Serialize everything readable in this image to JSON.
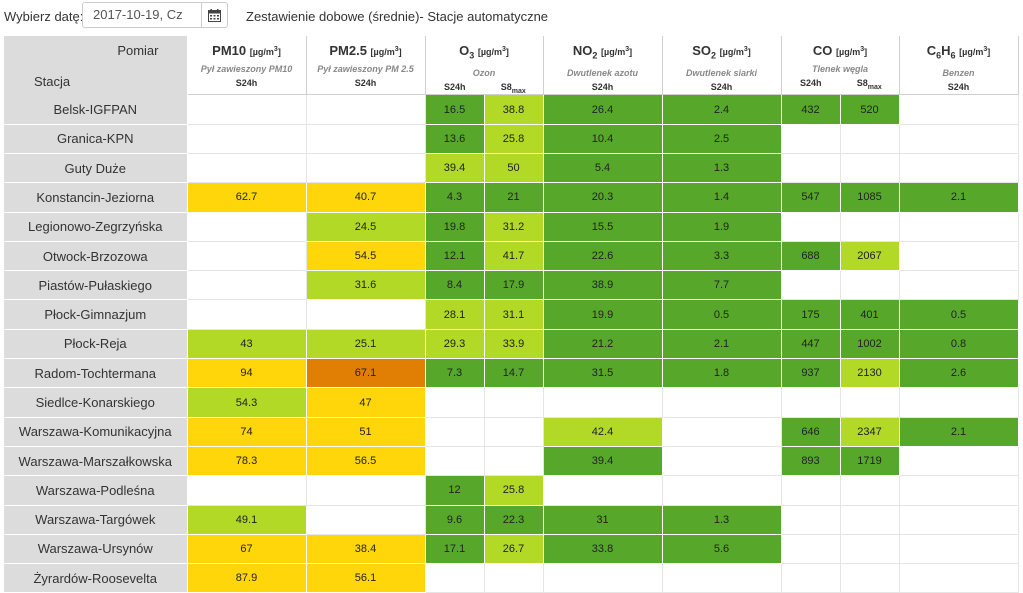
{
  "datepicker": {
    "label": "Wybierz datę:",
    "value": "2017-10-19, Cz",
    "icon": "calendar-icon"
  },
  "title": "Zestawienie dobowe (średnie)- Stacje automatyczne",
  "header": {
    "pomiar": "Pomiar",
    "stacja": "Stacja",
    "pollutants": [
      {
        "name": "PM10",
        "name_sub": "",
        "unit": "[µg/m",
        "unit_sup": "3",
        "unit_end": "]",
        "desc": "Pył zawieszony PM10",
        "cols": [
          "S24h"
        ]
      },
      {
        "name": "PM2.5",
        "name_sub": "",
        "unit": "[µg/m",
        "unit_sup": "3",
        "unit_end": "]",
        "desc": "Pył zawieszony PM 2.5",
        "cols": [
          "S24h"
        ]
      },
      {
        "name": "O",
        "name_sub": "3",
        "unit": "[µg/m",
        "unit_sup": "3",
        "unit_end": "]",
        "desc": "Ozon",
        "cols": [
          "S24h",
          "S8max"
        ]
      },
      {
        "name": "NO",
        "name_sub": "2",
        "unit": "[µg/m",
        "unit_sup": "3",
        "unit_end": "]",
        "desc": "Dwutlenek azotu",
        "cols": [
          "S24h"
        ]
      },
      {
        "name": "SO",
        "name_sub": "2",
        "unit": "[µg/m",
        "unit_sup": "3",
        "unit_end": "]",
        "desc": "Dwutlenek siarki",
        "cols": [
          "S24h"
        ]
      },
      {
        "name": "CO",
        "name_sub": "",
        "unit": "[µg/m",
        "unit_sup": "3",
        "unit_end": "]",
        "desc": "Tlenek węgla",
        "cols": [
          "S24h",
          "S8max"
        ]
      },
      {
        "name": "C6H6",
        "name_sub": "",
        "unit": "[µg/m",
        "unit_sup": "3",
        "unit_end": "]",
        "desc": "Benzen",
        "cols": [
          "S24h"
        ]
      }
    ]
  },
  "colors": {
    "g": "#57a82a",
    "lg": "#b1d926",
    "y": "#ffd60a",
    "o": "#e07f04"
  },
  "rows": [
    {
      "station": "Belsk-IGFPAN",
      "cells": [
        [
          "",
          ""
        ],
        [
          "",
          ""
        ],
        [
          "16.5",
          "g"
        ],
        [
          "38.8",
          "lg"
        ],
        [
          "26.4",
          "g"
        ],
        [
          "2.4",
          "g"
        ],
        [
          "432",
          "g"
        ],
        [
          "520",
          "g"
        ],
        [
          "",
          ""
        ]
      ]
    },
    {
      "station": "Granica-KPN",
      "cells": [
        [
          "",
          ""
        ],
        [
          "",
          ""
        ],
        [
          "13.6",
          "g"
        ],
        [
          "25.8",
          "lg"
        ],
        [
          "10.4",
          "g"
        ],
        [
          "2.5",
          "g"
        ],
        [
          "",
          ""
        ],
        [
          "",
          ""
        ],
        [
          "",
          ""
        ]
      ]
    },
    {
      "station": "Guty Duże",
      "cells": [
        [
          "",
          ""
        ],
        [
          "",
          ""
        ],
        [
          "39.4",
          "lg"
        ],
        [
          "50",
          "lg"
        ],
        [
          "5.4",
          "g"
        ],
        [
          "1.3",
          "g"
        ],
        [
          "",
          ""
        ],
        [
          "",
          ""
        ],
        [
          "",
          ""
        ]
      ]
    },
    {
      "station": "Konstancin-Jeziorna",
      "cells": [
        [
          "62.7",
          "y"
        ],
        [
          "40.7",
          "y"
        ],
        [
          "4.3",
          "g"
        ],
        [
          "21",
          "g"
        ],
        [
          "20.3",
          "g"
        ],
        [
          "1.4",
          "g"
        ],
        [
          "547",
          "g"
        ],
        [
          "1085",
          "g"
        ],
        [
          "2.1",
          "g"
        ]
      ]
    },
    {
      "station": "Legionowo-Zegrzyńska",
      "cells": [
        [
          "",
          ""
        ],
        [
          "24.5",
          "lg"
        ],
        [
          "19.8",
          "g"
        ],
        [
          "31.2",
          "lg"
        ],
        [
          "15.5",
          "g"
        ],
        [
          "1.9",
          "g"
        ],
        [
          "",
          ""
        ],
        [
          "",
          ""
        ],
        [
          "",
          ""
        ]
      ]
    },
    {
      "station": "Otwock-Brzozowa",
      "cells": [
        [
          "",
          ""
        ],
        [
          "54.5",
          "y"
        ],
        [
          "12.1",
          "g"
        ],
        [
          "41.7",
          "lg"
        ],
        [
          "22.6",
          "g"
        ],
        [
          "3.3",
          "g"
        ],
        [
          "688",
          "g"
        ],
        [
          "2067",
          "lg"
        ],
        [
          "",
          ""
        ]
      ]
    },
    {
      "station": "Piastów-Pułaskiego",
      "cells": [
        [
          "",
          ""
        ],
        [
          "31.6",
          "lg"
        ],
        [
          "8.4",
          "g"
        ],
        [
          "17.9",
          "g"
        ],
        [
          "38.9",
          "g"
        ],
        [
          "7.7",
          "g"
        ],
        [
          "",
          ""
        ],
        [
          "",
          ""
        ],
        [
          "",
          ""
        ]
      ]
    },
    {
      "station": "Płock-Gimnazjum",
      "cells": [
        [
          "",
          ""
        ],
        [
          "",
          ""
        ],
        [
          "28.1",
          "lg"
        ],
        [
          "31.1",
          "lg"
        ],
        [
          "19.9",
          "g"
        ],
        [
          "0.5",
          "g"
        ],
        [
          "175",
          "g"
        ],
        [
          "401",
          "g"
        ],
        [
          "0.5",
          "g"
        ]
      ]
    },
    {
      "station": "Płock-Reja",
      "cells": [
        [
          "43",
          "lg"
        ],
        [
          "25.1",
          "lg"
        ],
        [
          "29.3",
          "lg"
        ],
        [
          "33.9",
          "lg"
        ],
        [
          "21.2",
          "g"
        ],
        [
          "2.1",
          "g"
        ],
        [
          "447",
          "g"
        ],
        [
          "1002",
          "g"
        ],
        [
          "0.8",
          "g"
        ]
      ]
    },
    {
      "station": "Radom-Tochtermana",
      "cells": [
        [
          "94",
          "y"
        ],
        [
          "67.1",
          "o"
        ],
        [
          "7.3",
          "g"
        ],
        [
          "14.7",
          "g"
        ],
        [
          "31.5",
          "g"
        ],
        [
          "1.8",
          "g"
        ],
        [
          "937",
          "g"
        ],
        [
          "2130",
          "lg"
        ],
        [
          "2.6",
          "g"
        ]
      ]
    },
    {
      "station": "Siedlce-Konarskiego",
      "cells": [
        [
          "54.3",
          "lg"
        ],
        [
          "47",
          "y"
        ],
        [
          "",
          ""
        ],
        [
          "",
          ""
        ],
        [
          "",
          ""
        ],
        [
          "",
          ""
        ],
        [
          "",
          ""
        ],
        [
          "",
          ""
        ],
        [
          "",
          ""
        ]
      ]
    },
    {
      "station": "Warszawa-Komunikacyjna",
      "cells": [
        [
          "74",
          "y"
        ],
        [
          "51",
          "y"
        ],
        [
          "",
          ""
        ],
        [
          "",
          ""
        ],
        [
          "42.4",
          "lg"
        ],
        [
          "",
          ""
        ],
        [
          "646",
          "g"
        ],
        [
          "2347",
          "lg"
        ],
        [
          "2.1",
          "g"
        ]
      ]
    },
    {
      "station": "Warszawa-Marszałkowska",
      "cells": [
        [
          "78.3",
          "y"
        ],
        [
          "56.5",
          "y"
        ],
        [
          "",
          ""
        ],
        [
          "",
          ""
        ],
        [
          "39.4",
          "g"
        ],
        [
          "",
          ""
        ],
        [
          "893",
          "g"
        ],
        [
          "1719",
          "g"
        ],
        [
          "",
          ""
        ]
      ]
    },
    {
      "station": "Warszawa-Podleśna",
      "cells": [
        [
          "",
          ""
        ],
        [
          "",
          ""
        ],
        [
          "12",
          "g"
        ],
        [
          "25.8",
          "lg"
        ],
        [
          "",
          ""
        ],
        [
          "",
          ""
        ],
        [
          "",
          ""
        ],
        [
          "",
          ""
        ],
        [
          "",
          ""
        ]
      ]
    },
    {
      "station": "Warszawa-Targówek",
      "cells": [
        [
          "49.1",
          "lg"
        ],
        [
          "",
          ""
        ],
        [
          "9.6",
          "g"
        ],
        [
          "22.3",
          "g"
        ],
        [
          "31",
          "g"
        ],
        [
          "1.3",
          "g"
        ],
        [
          "",
          ""
        ],
        [
          "",
          ""
        ],
        [
          "",
          ""
        ]
      ]
    },
    {
      "station": "Warszawa-Ursynów",
      "cells": [
        [
          "67",
          "y"
        ],
        [
          "38.4",
          "y"
        ],
        [
          "17.1",
          "g"
        ],
        [
          "26.7",
          "lg"
        ],
        [
          "33.8",
          "g"
        ],
        [
          "5.6",
          "g"
        ],
        [
          "",
          ""
        ],
        [
          "",
          ""
        ],
        [
          "",
          ""
        ]
      ]
    },
    {
      "station": "Żyrardów-Roosevelta",
      "cells": [
        [
          "87.9",
          "y"
        ],
        [
          "56.1",
          "y"
        ],
        [
          "",
          ""
        ],
        [
          "",
          ""
        ],
        [
          "",
          ""
        ],
        [
          "",
          ""
        ],
        [
          "",
          ""
        ],
        [
          "",
          ""
        ],
        [
          "",
          ""
        ]
      ]
    }
  ]
}
